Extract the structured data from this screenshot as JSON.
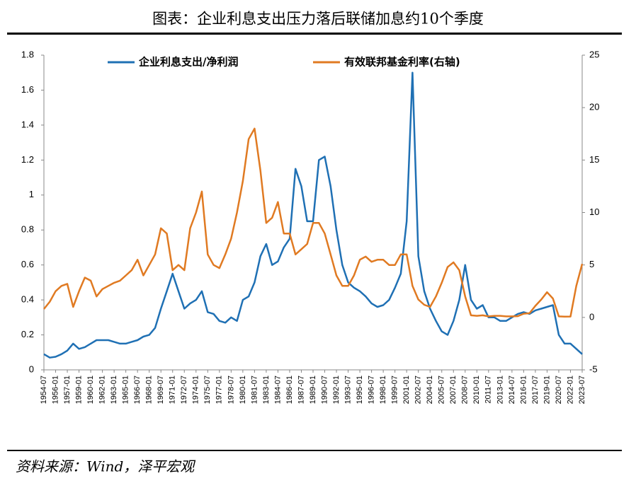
{
  "chart_data": {
    "type": "line",
    "title": "图表：企业利息支出压力落后联储加息约10个季度",
    "source": "资料来源：Wind，泽平宏观",
    "categories": [
      "1954-07",
      null,
      "1956-01",
      null,
      "1957-01",
      null,
      "1959-01",
      null,
      "1960-01",
      null,
      "1962-01",
      null,
      "1963-01",
      null,
      "1965-01",
      null,
      "1966-07",
      null,
      "1968-01",
      null,
      "1969-07",
      null,
      "1971-01",
      null,
      "1972-07",
      null,
      "1974-01",
      null,
      "1975-07",
      null,
      "1977-01",
      null,
      "1978-07",
      null,
      "1980-01",
      null,
      "1981-07",
      null,
      "1983-01",
      null,
      "1984-07",
      null,
      "1986-01",
      null,
      "1987-07",
      null,
      "1989-01",
      null,
      "1990-07",
      null,
      "1992-01",
      null,
      "1993-07",
      null,
      "1995-01",
      null,
      "1996-07",
      null,
      "1998-01",
      null,
      "1999-07",
      null,
      "2001-01",
      null,
      "2002-07",
      null,
      "2004-01",
      null,
      "2005-07",
      null,
      "2007-01",
      null,
      "2008-07",
      null,
      "2010-01",
      null,
      "2011-07",
      null,
      "2013-01",
      null,
      "2014-07",
      null,
      "2016-01",
      null,
      "2017-07",
      null,
      "2019-01",
      null,
      "2020-07",
      null,
      "2022-01",
      null,
      "2023-07"
    ],
    "series": [
      {
        "name": "企业利息支出/净利润",
        "color": "#1f70b4",
        "values": [
          0.09,
          0.07,
          0.075,
          0.09,
          0.11,
          0.15,
          0.12,
          0.13,
          0.15,
          0.17,
          0.17,
          0.17,
          0.16,
          0.15,
          0.15,
          0.16,
          0.17,
          0.19,
          0.2,
          0.24,
          0.35,
          0.45,
          0.55,
          0.45,
          0.35,
          0.38,
          0.4,
          0.45,
          0.33,
          0.32,
          0.28,
          0.27,
          0.3,
          0.28,
          0.4,
          0.42,
          0.5,
          0.65,
          0.72,
          0.6,
          0.62,
          0.7,
          0.75,
          1.15,
          1.05,
          0.85,
          0.85,
          1.2,
          1.22,
          1.05,
          0.8,
          0.6,
          0.5,
          0.47,
          0.45,
          0.42,
          0.38,
          0.36,
          0.37,
          0.4,
          0.47,
          0.55,
          0.85,
          1.7,
          0.65,
          0.45,
          0.35,
          0.28,
          0.22,
          0.2,
          0.28,
          0.4,
          0.6,
          0.4,
          0.35,
          0.37,
          0.3,
          0.3,
          0.28,
          0.28,
          0.3,
          0.32,
          0.33,
          0.32,
          0.34,
          0.35,
          0.36,
          0.37,
          0.2,
          0.15,
          0.15,
          0.12,
          0.09
        ]
      },
      {
        "name": "有效联邦基金利率(右轴)",
        "color": "#e07a22",
        "axis": "y2",
        "values": [
          0.8,
          1.5,
          2.5,
          3.0,
          3.2,
          1.0,
          2.5,
          3.8,
          3.5,
          2.0,
          2.7,
          3.0,
          3.3,
          3.5,
          4.0,
          4.5,
          5.5,
          4.0,
          5.0,
          6.0,
          8.5,
          8.0,
          4.5,
          5.0,
          4.5,
          8.5,
          10.0,
          12.0,
          6.0,
          5.0,
          4.7,
          6.0,
          7.5,
          10.0,
          13.0,
          17.0,
          18.0,
          14.0,
          9.0,
          9.5,
          11.0,
          8.0,
          8.0,
          6.0,
          6.5,
          7.0,
          9.0,
          9.0,
          8.0,
          6.0,
          4.0,
          3.0,
          3.0,
          4.0,
          5.5,
          5.8,
          5.3,
          5.5,
          5.5,
          5.0,
          5.0,
          6.0,
          6.0,
          3.0,
          1.7,
          1.2,
          1.0,
          2.0,
          3.3,
          4.8,
          5.25,
          4.5,
          2.0,
          0.2,
          0.15,
          0.2,
          0.1,
          0.15,
          0.15,
          0.1,
          0.1,
          0.12,
          0.35,
          0.4,
          1.1,
          1.7,
          2.4,
          1.8,
          0.1,
          0.07,
          0.08,
          3.0,
          5.1
        ]
      }
    ],
    "ylim": [
      0,
      1.8
    ],
    "yticks": [
      0,
      0.2,
      0.4,
      0.6,
      0.8,
      1,
      1.2,
      1.4,
      1.6,
      1.8
    ],
    "y2lim": [
      -5,
      25
    ],
    "y2ticks": [
      -5,
      0,
      5,
      10,
      15,
      20,
      25
    ],
    "grid": false
  }
}
